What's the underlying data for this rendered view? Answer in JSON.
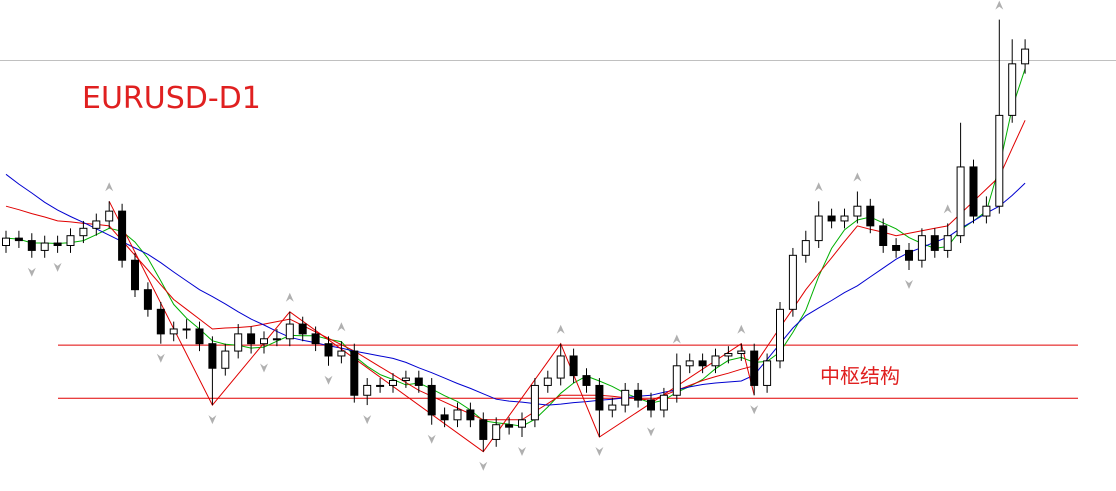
{
  "chart_data": {
    "type": "candlestick",
    "title": "EURUSD-D1",
    "annotation": "中枢结构",
    "ylim": [
      0,
      100
    ],
    "open": [
      50,
      51.5,
      51,
      49,
      50.5,
      50,
      52,
      53.5,
      55,
      57,
      47,
      41,
      37,
      32,
      33,
      33,
      30,
      25,
      28.5,
      32,
      30,
      31,
      31,
      34,
      32,
      30,
      27.5,
      28.5,
      19.5,
      21.5,
      21.5,
      22.5,
      23,
      21.5,
      15.5,
      14.5,
      16.5,
      14.5,
      10.5,
      13.5,
      13,
      14.5,
      21.5,
      23,
      27.5,
      23.5,
      21.5,
      16.5,
      17.5,
      20.5,
      18.5,
      16.5,
      19.5,
      25.5,
      26.5,
      25.5,
      27.5,
      28,
      28.5,
      21.5,
      26.5,
      37,
      48,
      51,
      56,
      55,
      56,
      58,
      54,
      50,
      49,
      47,
      52,
      49,
      52,
      66,
      56,
      58,
      76.5,
      87
    ],
    "high": [
      53,
      53,
      52.5,
      52,
      52,
      53.5,
      55,
      56.5,
      59,
      58.5,
      48.5,
      42.5,
      38.5,
      34.5,
      35,
      34.5,
      31.5,
      30,
      34,
      33.5,
      32.5,
      33,
      36.5,
      35.5,
      33.5,
      31.5,
      30.5,
      30,
      23,
      23,
      24,
      24.5,
      24.5,
      23,
      17,
      18,
      18,
      16,
      15,
      15,
      16,
      23,
      24.5,
      30,
      29,
      25,
      23,
      19,
      22,
      22,
      20,
      21,
      28,
      28,
      28,
      29,
      29.5,
      30,
      30,
      28,
      38.5,
      49.5,
      53,
      59,
      57.5,
      57.5,
      61,
      59.5,
      55.5,
      51.5,
      50.5,
      53.5,
      53.5,
      54.5,
      75,
      67.5,
      60,
      96,
      92,
      92
    ],
    "low": [
      48.5,
      49.5,
      47.5,
      47.5,
      48.5,
      48.5,
      50.5,
      52,
      53.5,
      45.5,
      39.5,
      35.5,
      30,
      30.5,
      31,
      28.5,
      17.5,
      23.5,
      27,
      28,
      28,
      29.5,
      29.5,
      30.5,
      28.5,
      25.5,
      26,
      18,
      17.5,
      20,
      20,
      21,
      20,
      13.5,
      13,
      13,
      13,
      8,
      9,
      11.5,
      11,
      13,
      20,
      21.5,
      22,
      20,
      11,
      15,
      16,
      17,
      15,
      15,
      18,
      24,
      24,
      24,
      26,
      26.5,
      19.5,
      20,
      25,
      35.5,
      46.5,
      49.5,
      53.5,
      53.5,
      54.5,
      52.5,
      48.5,
      47.5,
      45,
      45.5,
      47.5,
      47.5,
      50.5,
      54.5,
      54.5,
      56.5,
      75,
      85
    ],
    "close": [
      51.5,
      51,
      49,
      50.5,
      50,
      52,
      53.5,
      55,
      57,
      47,
      41,
      37,
      32,
      33,
      33,
      30,
      25,
      28.5,
      32,
      30,
      31,
      31,
      34,
      32,
      30,
      27.5,
      28.5,
      19.5,
      21.5,
      21.5,
      22.5,
      23,
      21.5,
      15.5,
      14.5,
      16.5,
      14.5,
      10.5,
      13.5,
      13,
      14.5,
      21.5,
      23,
      27.5,
      23.5,
      21.5,
      16.5,
      17.5,
      20.5,
      18.5,
      16.5,
      19.5,
      25.5,
      26.5,
      25.5,
      27.5,
      28,
      28.5,
      21.5,
      26.5,
      37,
      48,
      51,
      56,
      55,
      56,
      58,
      54,
      50,
      49,
      47,
      52,
      49,
      52,
      66,
      56,
      58,
      76.5,
      87,
      90
    ],
    "series": [
      {
        "color": "#00b000",
        "values": [
          51.5,
          51.3,
          50.5,
          50.5,
          50.4,
          50.6,
          51,
          52.2,
          53.5,
          52.9,
          50.7,
          47.4,
          42.8,
          38,
          35.2,
          33,
          30.6,
          29.9,
          29.7,
          29.1,
          29.3,
          30.5,
          31.7,
          31.6,
          31.6,
          30.9,
          30.4,
          27.5,
          25.4,
          23.7,
          22.7,
          21.6,
          22,
          20.8,
          19.4,
          18.2,
          16.5,
          14.3,
          13.9,
          13.6,
          13.2,
          14.6,
          17.1,
          19.9,
          22,
          23.4,
          22.4,
          21.3,
          19.9,
          18.9,
          17.9,
          18.5,
          20.1,
          21.3,
          22.7,
          24.9,
          26.6,
          27.2,
          26.2,
          26.4,
          28.3,
          32.3,
          36.8,
          43.7,
          49.4,
          53.2,
          55.2,
          55.8,
          54.6,
          53.4,
          51.6,
          50.4,
          49.4,
          49.8,
          53.2,
          55,
          57,
          66,
          78,
          86
        ]
      },
      {
        "color": "#e00000",
        "values": [
          58,
          57.3,
          56.5,
          55.8,
          55,
          54.8,
          54.5,
          54.3,
          54,
          51,
          48,
          45,
          42,
          39,
          37,
          35,
          33,
          33.2,
          33.3,
          33.5,
          34,
          34.5,
          35,
          33.7,
          32.4,
          31.1,
          29.8,
          28.5,
          26.9,
          25.3,
          23.7,
          22.1,
          20.5,
          19.3,
          18.1,
          16.9,
          15.7,
          14.5,
          14.5,
          14.5,
          14.5,
          16.2,
          17.8,
          19.5,
          19.5,
          19.5,
          19.5,
          19.3,
          19,
          18.8,
          18.5,
          19.5,
          20.5,
          21.5,
          22.5,
          23.3,
          24,
          24.8,
          25.5,
          29.4,
          33.3,
          37.1,
          41,
          44.3,
          47.5,
          50.8,
          54,
          53.3,
          52.7,
          52,
          52.5,
          53,
          53.5,
          54,
          56.5,
          59,
          61.5,
          64,
          69.8,
          75.5
        ]
      },
      {
        "color": "#0000d0",
        "values": [
          64.5,
          62.5,
          60.7,
          58.8,
          57.2,
          55.9,
          54.7,
          53.4,
          52.1,
          50.8,
          49.5,
          48.2,
          46.5,
          44.6,
          42.8,
          41,
          39.6,
          38.1,
          36.5,
          35,
          33.8,
          32.5,
          31.3,
          30.7,
          30.2,
          29.6,
          29.1,
          28.5,
          28,
          27.5,
          27,
          26.2,
          25.1,
          24.1,
          23,
          21.9,
          20.9,
          19.8,
          18.7,
          18.3,
          18.1,
          17.8,
          17.5,
          17.7,
          18,
          18.2,
          18.5,
          18.7,
          19,
          19.3,
          19.5,
          20.1,
          20.6,
          21.2,
          21.7,
          22,
          22.2,
          22.4,
          23.6,
          26.8,
          30,
          33.2,
          35.7,
          37.3,
          38.8,
          40.4,
          41.8,
          43.6,
          45.4,
          47.2,
          48.6,
          49.6,
          50.7,
          51.7,
          53.5,
          55,
          56.6,
          58,
          60.2,
          62.7
        ]
      }
    ],
    "zigzag": {
      "color": "#e00000",
      "connect_gaps": true,
      "values": [
        null,
        null,
        null,
        null,
        null,
        null,
        null,
        null,
        59,
        null,
        null,
        null,
        null,
        null,
        null,
        null,
        17.5,
        null,
        null,
        null,
        null,
        null,
        36.5,
        null,
        null,
        null,
        null,
        null,
        null,
        null,
        null,
        null,
        null,
        null,
        null,
        null,
        null,
        8,
        null,
        null,
        null,
        null,
        null,
        30,
        null,
        null,
        11,
        null,
        null,
        null,
        null,
        null,
        null,
        null,
        null,
        null,
        null,
        30,
        19.5,
        null,
        null,
        null,
        null,
        null,
        null,
        null,
        null,
        null,
        null,
        null,
        null,
        null,
        null,
        null,
        null,
        null,
        null,
        null,
        null,
        null
      ]
    },
    "fractal_up": [
      null,
      null,
      null,
      null,
      null,
      null,
      null,
      null,
      59,
      null,
      null,
      null,
      null,
      null,
      null,
      null,
      null,
      null,
      null,
      null,
      null,
      null,
      36.5,
      null,
      null,
      null,
      30.5,
      null,
      null,
      null,
      null,
      null,
      null,
      null,
      null,
      null,
      null,
      null,
      null,
      null,
      null,
      null,
      null,
      30,
      null,
      null,
      null,
      null,
      null,
      null,
      null,
      null,
      28,
      null,
      null,
      null,
      null,
      30,
      null,
      null,
      null,
      null,
      null,
      59,
      null,
      null,
      61,
      null,
      null,
      null,
      null,
      null,
      null,
      54.5,
      null,
      null,
      null,
      96,
      null,
      null
    ],
    "fractal_down": [
      null,
      null,
      47.5,
      null,
      48.5,
      null,
      null,
      null,
      null,
      null,
      null,
      null,
      30,
      null,
      null,
      null,
      17.5,
      null,
      null,
      null,
      28,
      null,
      null,
      null,
      null,
      25.5,
      null,
      null,
      17.5,
      null,
      null,
      null,
      null,
      13.5,
      null,
      null,
      null,
      8,
      null,
      null,
      11,
      null,
      null,
      null,
      null,
      null,
      11,
      null,
      null,
      null,
      15,
      null,
      null,
      null,
      null,
      null,
      null,
      null,
      19.5,
      null,
      null,
      null,
      null,
      null,
      null,
      null,
      null,
      null,
      null,
      null,
      45,
      null,
      null,
      null,
      null,
      null,
      null,
      null,
      null,
      null
    ],
    "levels": [
      29.7,
      18.9
    ],
    "level_color": "#e00000"
  }
}
